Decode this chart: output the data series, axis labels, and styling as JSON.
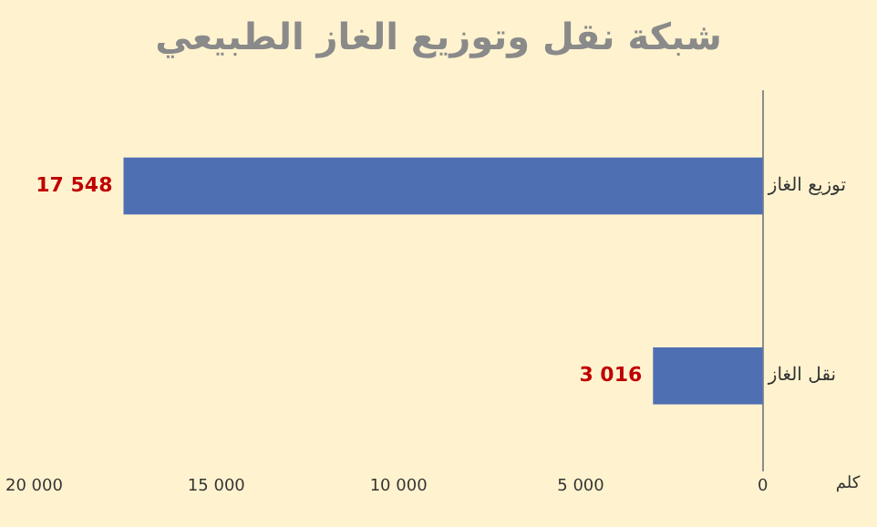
{
  "chart_data": {
    "type": "bar",
    "orientation": "horizontal",
    "title": "شبكة نقل وتوزيع الغاز الطبيعي",
    "xlabel": "كلم",
    "categories": [
      "توزيع الغاز",
      "نقل الغاز"
    ],
    "values": [
      17548,
      3016
    ],
    "color": "#4f6fb3",
    "value_labels": [
      "17 548",
      "3 016"
    ],
    "xlim": [
      20000,
      0
    ],
    "xticks": [
      {
        "value": 20000,
        "label": "20 000"
      },
      {
        "value": 15000,
        "label": "15 000"
      },
      {
        "value": 10000,
        "label": "10 000"
      },
      {
        "value": 5000,
        "label": "5 000"
      },
      0
    ],
    "grid": false,
    "legend": false
  }
}
